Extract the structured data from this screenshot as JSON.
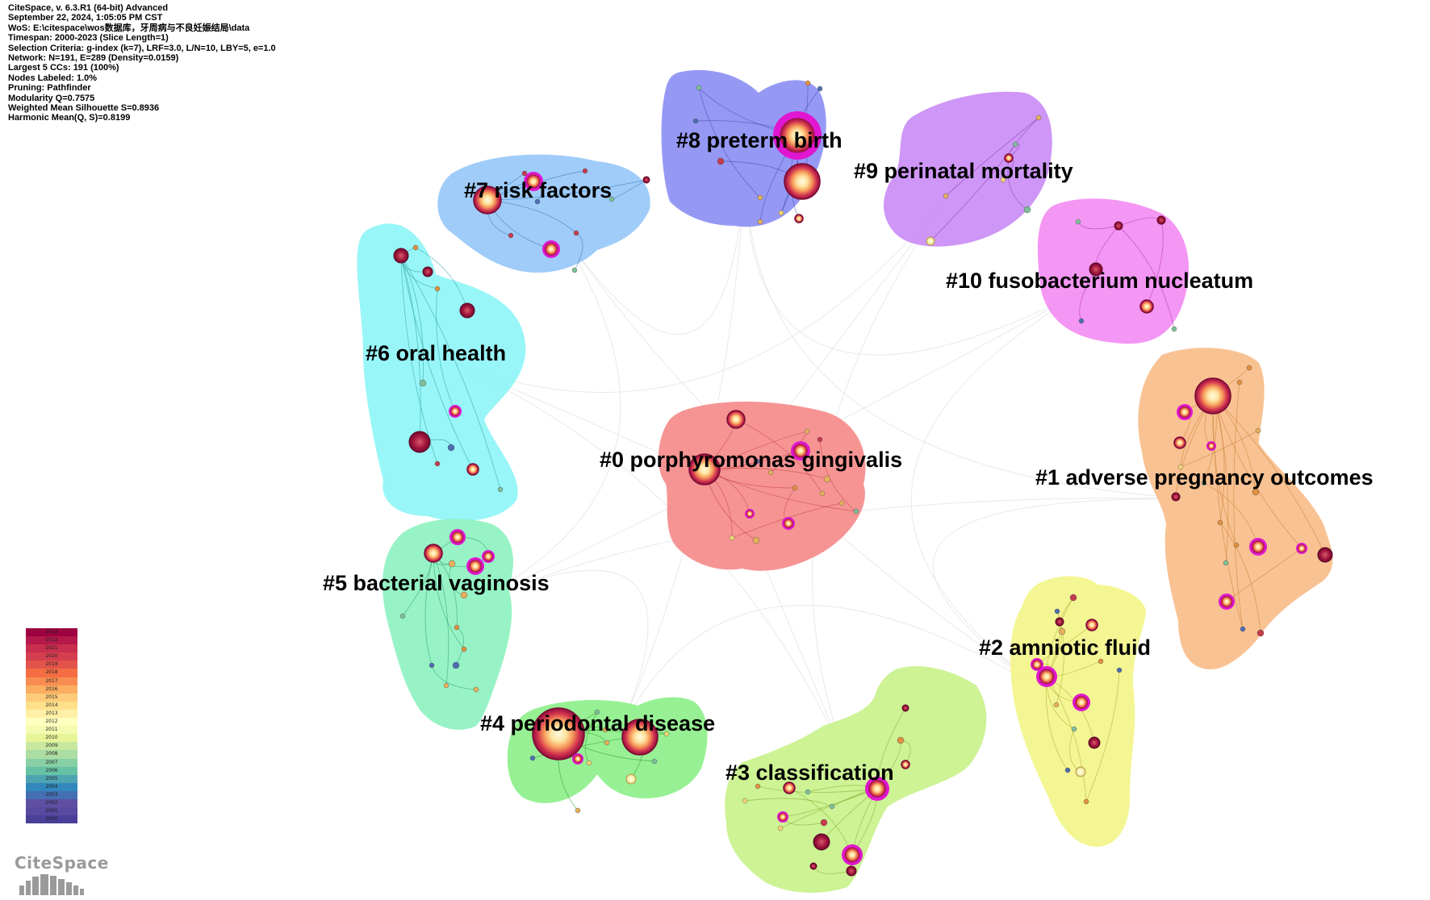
{
  "info_lines": [
    "CiteSpace, v. 6.3.R1 (64-bit) Advanced",
    "September 22, 2024, 1:05:05 PM CST",
    "WoS: E:\\citespace\\wos数据库，牙周病与不良妊娠结局\\data",
    "Timespan: 2000-2023 (Slice Length=1)",
    "Selection Criteria: g-index (k=7), LRF=3.0, L/N=10, LBY=5, e=1.0",
    "Network: N=191, E=289 (Density=0.0159)",
    "Largest 5 CCs: 191 (100%)",
    "Nodes Labeled: 1.0%",
    "Pruning: Pathfinder",
    "Modularity Q=0.7575",
    "Weighted Mean Silhouette S=0.8936",
    "Harmonic Mean(Q, S)=0.8199"
  ],
  "clusters": [
    {
      "id": 0,
      "label": "#0 porphyromonas gingivalis",
      "color": "#f58b8b"
    },
    {
      "id": 1,
      "label": "#1 adverse pregnancy outcomes",
      "color": "#f9bd8a"
    },
    {
      "id": 2,
      "label": "#2 amniotic fluid",
      "color": "#f3f58b"
    },
    {
      "id": 3,
      "label": "#3 classification",
      "color": "#c9f28b"
    },
    {
      "id": 4,
      "label": "#4 periodontal disease",
      "color": "#8ef08b"
    },
    {
      "id": 5,
      "label": "#5 bacterial vaginosis",
      "color": "#8ef2c0"
    },
    {
      "id": 6,
      "label": "#6 oral health",
      "color": "#8af5f7"
    },
    {
      "id": 7,
      "label": "#7 risk factors",
      "color": "#93c5f8"
    },
    {
      "id": 8,
      "label": "#8 preterm birth",
      "color": "#8b8ef3"
    },
    {
      "id": 9,
      "label": "#9 perinatal mortality",
      "color": "#c98bf5"
    },
    {
      "id": 10,
      "label": "#10 fusobacterium nucleatum",
      "color": "#f38bf3"
    }
  ],
  "legend_years": [
    "2023",
    "2022",
    "2021",
    "2020",
    "2019",
    "2018",
    "2017",
    "2016",
    "2015",
    "2014",
    "2013",
    "2012",
    "2011",
    "2010",
    "2009",
    "2008",
    "2007",
    "2006",
    "2005",
    "2004",
    "2003",
    "2002",
    "2001",
    "2000"
  ],
  "legend_colors": [
    "#9e0142",
    "#b5194b",
    "#c92e4e",
    "#d53e4f",
    "#e2534b",
    "#f46d43",
    "#f88d52",
    "#fbad60",
    "#fdcb79",
    "#fee08b",
    "#fff0a6",
    "#ffffbf",
    "#f4fab0",
    "#e6f598",
    "#c7e89e",
    "#abdda4",
    "#87cfa4",
    "#66c2a5",
    "#4ea4b0",
    "#3288bd",
    "#4470b3",
    "#5e4fa2",
    "#584aa0",
    "#4b3f99"
  ],
  "logo_text": "CiteSpace"
}
